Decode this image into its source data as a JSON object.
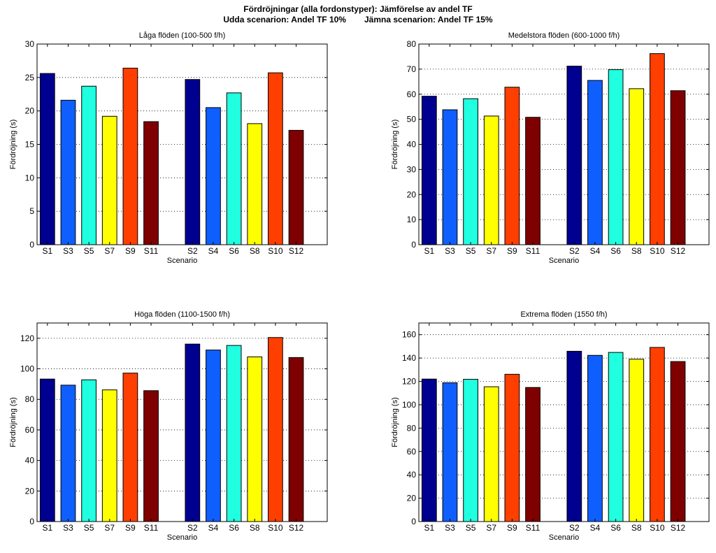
{
  "figure": {
    "title": "Fördröjningar (alla fordonstyper): Jämförelse av andel TF",
    "subtitle_odd": "Udda scenarion: Andel TF 10%",
    "subtitle_even": "Jämna scenarion: Andel TF 15%"
  },
  "colors": [
    "#000090",
    "#0f5fff",
    "#20ffdf",
    "#ffff00",
    "#ff3f00",
    "#7f0000"
  ],
  "chart_data": [
    {
      "type": "bar",
      "title": "Låga flöden (100-500 f/h)",
      "xlabel": "Scenario",
      "ylabel": "Fördröjning (s)",
      "ylim": [
        0,
        30
      ],
      "yticks": [
        0,
        5,
        10,
        15,
        20,
        25,
        30
      ],
      "xlim": [
        0.5,
        14.5
      ],
      "grid": true,
      "categories": [
        "S1",
        "S3",
        "S5",
        "S7",
        "S9",
        "S11",
        "S2",
        "S4",
        "S6",
        "S8",
        "S10",
        "S12"
      ],
      "x": [
        1,
        2,
        3,
        4,
        5,
        6,
        8,
        9,
        10,
        11,
        12,
        13
      ],
      "values": [
        25.6,
        21.6,
        23.7,
        19.2,
        26.4,
        18.4,
        24.7,
        20.5,
        22.7,
        18.1,
        25.7,
        17.1
      ]
    },
    {
      "type": "bar",
      "title": "Medelstora flöden (600-1000 f/h)",
      "xlabel": "Scenario",
      "ylabel": "Fördröjning (s)",
      "ylim": [
        0,
        80
      ],
      "yticks": [
        0,
        10,
        20,
        30,
        40,
        50,
        60,
        70,
        80
      ],
      "xlim": [
        0.5,
        14.5
      ],
      "grid": true,
      "categories": [
        "S1",
        "S3",
        "S5",
        "S7",
        "S9",
        "S11",
        "S2",
        "S4",
        "S6",
        "S8",
        "S10",
        "S12"
      ],
      "x": [
        1,
        2,
        3,
        4,
        5,
        6,
        8,
        9,
        10,
        11,
        12,
        13
      ],
      "values": [
        59.2,
        53.8,
        58.2,
        51.3,
        62.8,
        50.8,
        71.2,
        65.5,
        69.8,
        62.2,
        76.2,
        61.4
      ]
    },
    {
      "type": "bar",
      "title": "Höga flöden (1100-1500 f/h)",
      "xlabel": "Scenario",
      "ylabel": "Fördröjning (s)",
      "ylim": [
        0,
        130
      ],
      "yticks": [
        0,
        20,
        40,
        60,
        80,
        100,
        120
      ],
      "xlim": [
        0.5,
        14.5
      ],
      "grid": true,
      "categories": [
        "S1",
        "S3",
        "S5",
        "S7",
        "S9",
        "S11",
        "S2",
        "S4",
        "S6",
        "S8",
        "S10",
        "S12"
      ],
      "x": [
        1,
        2,
        3,
        4,
        5,
        6,
        8,
        9,
        10,
        11,
        12,
        13
      ],
      "values": [
        93.3,
        89.3,
        92.8,
        86.2,
        97.2,
        85.7,
        116.2,
        112.3,
        115.3,
        107.8,
        120.5,
        107.4
      ]
    },
    {
      "type": "bar",
      "title": "Extrema flöden (1550 f/h)",
      "xlabel": "Scenario",
      "ylabel": "Fördröjning (s)",
      "ylim": [
        0,
        170
      ],
      "yticks": [
        0,
        20,
        40,
        60,
        80,
        100,
        120,
        140,
        160
      ],
      "xlim": [
        0.5,
        14.5
      ],
      "grid": true,
      "categories": [
        "S1",
        "S3",
        "S5",
        "S7",
        "S9",
        "S11",
        "S2",
        "S4",
        "S6",
        "S8",
        "S10",
        "S12"
      ],
      "x": [
        1,
        2,
        3,
        4,
        5,
        6,
        8,
        9,
        10,
        11,
        12,
        13
      ],
      "values": [
        122.0,
        118.8,
        121.8,
        115.4,
        126.1,
        114.8,
        145.8,
        142.3,
        144.8,
        139.0,
        149.1,
        137.0
      ]
    }
  ]
}
